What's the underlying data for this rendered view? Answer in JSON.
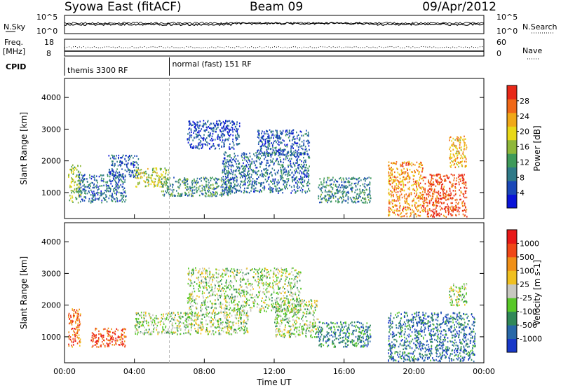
{
  "header": {
    "station": "Syowa East (fitACF)",
    "beam": "Beam 09",
    "date": "09/Apr/2012"
  },
  "noise_panel": {
    "left_label": "N.Sky",
    "right_label": "N.Search",
    "left_ticks": [
      "10^5",
      "10^0"
    ],
    "right_ticks": [
      "10^5",
      "10^0"
    ]
  },
  "freq_panel": {
    "left_label_line1": "Freq.",
    "left_label_line2": "[MHz]",
    "right_label": "Nave",
    "left_ticks": [
      "18",
      "8"
    ],
    "right_ticks": [
      "60",
      "0"
    ]
  },
  "cpid": {
    "label": "CPID",
    "segments": [
      {
        "text": "themis 3300 RF",
        "start_hour": 0
      },
      {
        "text": "normal (fast) 151 RF",
        "start_hour": 6
      }
    ]
  },
  "chart_data": [
    {
      "type": "heatmap",
      "quantity": "Power",
      "ylabel": "Slant Range [km]",
      "ylim": [
        180,
        4600
      ],
      "yticks": [
        1000,
        2000,
        3000,
        4000
      ],
      "xlim_hours": [
        0,
        24
      ],
      "colorbar": {
        "label": "Power [dB]",
        "range": [
          0,
          32
        ],
        "ticks": [
          "4",
          "8",
          "12",
          "16",
          "20",
          "24",
          "28"
        ],
        "colors": [
          "#0a14d8",
          "#1a48b8",
          "#2f7a88",
          "#3f9a5a",
          "#8fb83a",
          "#e8d818",
          "#f0a818",
          "#f06818",
          "#e82818"
        ]
      },
      "regions": [
        {
          "t0": 0.2,
          "t1": 0.9,
          "r0": 700,
          "r1": 1900,
          "level": 0.5
        },
        {
          "t0": 0.8,
          "t1": 3.5,
          "r0": 700,
          "r1": 1600,
          "level": 0.25
        },
        {
          "t0": 2.5,
          "t1": 4.2,
          "r0": 1500,
          "r1": 2200,
          "level": 0.2
        },
        {
          "t0": 4.0,
          "t1": 6.0,
          "r0": 1200,
          "r1": 1800,
          "level": 0.55
        },
        {
          "t0": 5.5,
          "t1": 9.5,
          "r0": 900,
          "r1": 1500,
          "level": 0.35
        },
        {
          "t0": 7.0,
          "t1": 10.0,
          "r0": 2400,
          "r1": 3300,
          "level": 0.15
        },
        {
          "t0": 9.0,
          "t1": 14.0,
          "r0": 1000,
          "r1": 2300,
          "level": 0.25
        },
        {
          "t0": 11.0,
          "t1": 14.0,
          "r0": 2200,
          "r1": 3000,
          "level": 0.2
        },
        {
          "t0": 14.5,
          "t1": 17.5,
          "r0": 700,
          "r1": 1500,
          "level": 0.3
        },
        {
          "t0": 18.5,
          "t1": 20.5,
          "r0": 250,
          "r1": 2000,
          "level": 0.75
        },
        {
          "t0": 20.5,
          "t1": 23.0,
          "r0": 250,
          "r1": 1600,
          "level": 0.9
        },
        {
          "t0": 22.0,
          "t1": 23.0,
          "r0": 1800,
          "r1": 2800,
          "level": 0.7
        }
      ]
    },
    {
      "type": "heatmap",
      "quantity": "Velocity",
      "ylabel": "Slant Range [km]",
      "ylim": [
        180,
        4600
      ],
      "yticks": [
        1000,
        2000,
        3000,
        4000
      ],
      "xlim_hours": [
        0,
        24
      ],
      "xticks": [
        "00:00",
        "04:00",
        "08:00",
        "12:00",
        "16:00",
        "20:00",
        "00:00"
      ],
      "xlabel": "Time UT",
      "colorbar": {
        "label": "Velocity [m s-1]",
        "ticks": [
          "1000",
          "500",
          "100",
          "25",
          "-25",
          "-100",
          "-500",
          "-1000"
        ],
        "colors": [
          "#1838c8",
          "#2868a8",
          "#308858",
          "#58c828",
          "#c8c8c0",
          "#f0c020",
          "#f09018",
          "#f04818",
          "#e81818"
        ]
      },
      "regions": [
        {
          "t0": 0.2,
          "t1": 0.9,
          "r0": 700,
          "r1": 1900,
          "level": 0.8
        },
        {
          "t0": 1.5,
          "t1": 3.5,
          "r0": 700,
          "r1": 1300,
          "level": 0.85
        },
        {
          "t0": 4.0,
          "t1": 10.5,
          "r0": 1100,
          "r1": 1800,
          "level": 0.45
        },
        {
          "t0": 7.0,
          "t1": 13.5,
          "r0": 1800,
          "r1": 3200,
          "level": 0.45
        },
        {
          "t0": 12.0,
          "t1": 14.5,
          "r0": 1000,
          "r1": 2200,
          "level": 0.45
        },
        {
          "t0": 14.5,
          "t1": 17.5,
          "r0": 700,
          "r1": 1500,
          "level": 0.25
        },
        {
          "t0": 18.5,
          "t1": 23.5,
          "r0": 250,
          "r1": 1800,
          "level": 0.2
        },
        {
          "t0": 22.0,
          "t1": 23.0,
          "r0": 2000,
          "r1": 2700,
          "level": 0.45
        }
      ]
    }
  ]
}
